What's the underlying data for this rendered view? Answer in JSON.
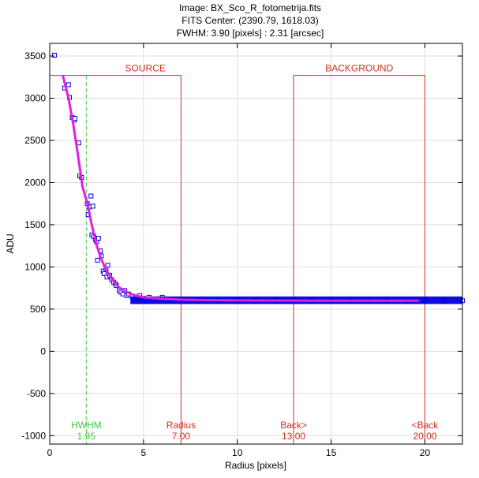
{
  "chart_data": {
    "type": "scatter",
    "title_lines": [
      "Image: BX_Sco_R_fotometrija.fits",
      "FITS Center: (2390.79,  1618.03)",
      "FWHM: 3.90 [pixels] : 2.31 [arcsec]"
    ],
    "xlabel": "Radius [pixels]",
    "ylabel": "ADU",
    "xlim": [
      0,
      22
    ],
    "ylim": [
      -1100,
      3650
    ],
    "x_ticks": [
      0,
      5,
      10,
      15,
      20
    ],
    "y_ticks": [
      -1000,
      -500,
      0,
      500,
      1000,
      1500,
      2000,
      2500,
      3000,
      3500
    ],
    "grid": true,
    "colors": {
      "data_points": "#0000dd",
      "fit_line": "#e020e0",
      "aperture": "#d03020",
      "hwhm": "#40cc40",
      "grid": "#dddddd"
    },
    "series": [
      {
        "kind": "points",
        "x": [
          0.25,
          0.8,
          1.0,
          1.05,
          1.2,
          1.3,
          1.35,
          1.55,
          1.6,
          1.7,
          2.0,
          2.05,
          2.1,
          2.2,
          2.25,
          2.3,
          2.35,
          2.45,
          2.5,
          2.55,
          2.6,
          2.7,
          2.75,
          2.85,
          2.9,
          3.0,
          3.05,
          3.1,
          3.2,
          3.3,
          3.4,
          3.5,
          3.55,
          3.7,
          3.8,
          3.9,
          4.0,
          4.1,
          4.2,
          4.4,
          4.6,
          4.8,
          5.0,
          5.3,
          5.6,
          6.0,
          6.5,
          7.0,
          7.5,
          8.0,
          9.0,
          10.0,
          11.0,
          12.0,
          13.0,
          14.0,
          15.0,
          16.0,
          17.0,
          18.0,
          19.0,
          20.0,
          21.0,
          22.0
        ],
        "y": [
          3510,
          3120,
          3160,
          3010,
          2770,
          2740,
          2760,
          2470,
          2080,
          2060,
          1750,
          1620,
          1710,
          1840,
          1380,
          1720,
          1360,
          1320,
          1300,
          1080,
          1340,
          1190,
          1130,
          950,
          920,
          980,
          880,
          1020,
          900,
          850,
          820,
          800,
          780,
          720,
          700,
          680,
          720,
          660,
          680,
          650,
          640,
          660,
          630,
          640,
          620,
          640,
          610,
          620,
          600,
          610,
          600,
          605,
          600,
          600,
          600,
          595,
          600,
          600,
          600,
          600,
          600,
          600,
          600,
          600
        ]
      },
      {
        "kind": "fit",
        "x": [
          0.7,
          1.0,
          1.25,
          1.5,
          1.75,
          2.0,
          2.25,
          2.5,
          2.75,
          3.0,
          3.25,
          3.5,
          3.75,
          4.0,
          4.5,
          5.0,
          5.5,
          6.0,
          7.0,
          8.0,
          10.0,
          14.0,
          19.7
        ],
        "y": [
          3270,
          3000,
          2700,
          2330,
          1950,
          1760,
          1490,
          1260,
          1090,
          970,
          880,
          800,
          750,
          710,
          665,
          640,
          630,
          622,
          612,
          607,
          603,
          600,
          600
        ]
      }
    ],
    "aperture_markers": [
      {
        "label": "Radius",
        "value_text": "7.00",
        "x": 7.0
      },
      {
        "label": "Back>",
        "value_text": "13.00",
        "x": 13.0
      },
      {
        "label": "<Back",
        "value_text": "20.00",
        "x": 20.0
      }
    ],
    "hwhm_marker": {
      "label": "HWHM",
      "value_text": "1.95",
      "x": 1.95
    },
    "region_labels": {
      "source": "SOURCE",
      "background": "BACKGROUND"
    },
    "bracket_top_y": 3270
  }
}
